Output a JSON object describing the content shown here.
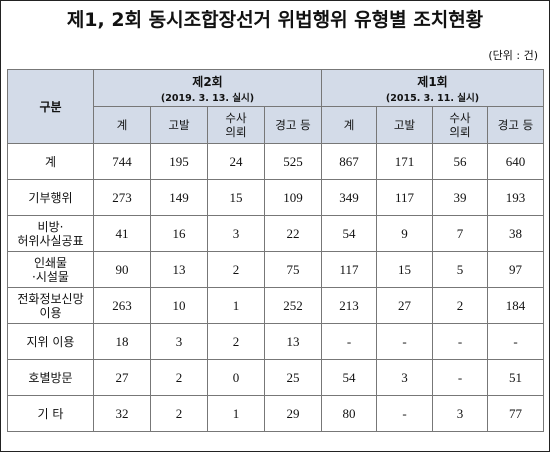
{
  "title": "제1, 2회 동시조합장선거 위법행위 유형별 조치현황",
  "unit": "(단위 : 건)",
  "header": {
    "category": "구분",
    "groups": [
      {
        "name": "제2회",
        "date": "(2019. 3. 13. 실시)"
      },
      {
        "name": "제1회",
        "date": "(2015. 3. 11. 실시)"
      }
    ],
    "subs": [
      "계",
      "고발",
      "수사\n의뢰",
      "경고 등"
    ]
  },
  "rows": [
    {
      "label": "계",
      "values": [
        "744",
        "195",
        "24",
        "525",
        "867",
        "171",
        "56",
        "640"
      ]
    },
    {
      "label": "기부행위",
      "values": [
        "273",
        "149",
        "15",
        "109",
        "349",
        "117",
        "39",
        "193"
      ]
    },
    {
      "label": "비방·\n허위사실공표",
      "values": [
        "41",
        "16",
        "3",
        "22",
        "54",
        "9",
        "7",
        "38"
      ]
    },
    {
      "label": "인쇄물\n·시설물",
      "values": [
        "90",
        "13",
        "2",
        "75",
        "117",
        "15",
        "5",
        "97"
      ]
    },
    {
      "label": "전화정보신망\n이용",
      "values": [
        "263",
        "10",
        "1",
        "252",
        "213",
        "27",
        "2",
        "184"
      ]
    },
    {
      "label": "지위 이용",
      "values": [
        "18",
        "3",
        "2",
        "13",
        "-",
        "-",
        "-",
        "-"
      ]
    },
    {
      "label": "호별방문",
      "values": [
        "27",
        "2",
        "0",
        "25",
        "54",
        "3",
        "-",
        "51"
      ]
    },
    {
      "label": "기 타",
      "values": [
        "32",
        "2",
        "1",
        "29",
        "80",
        "-",
        "3",
        "77"
      ]
    }
  ]
}
